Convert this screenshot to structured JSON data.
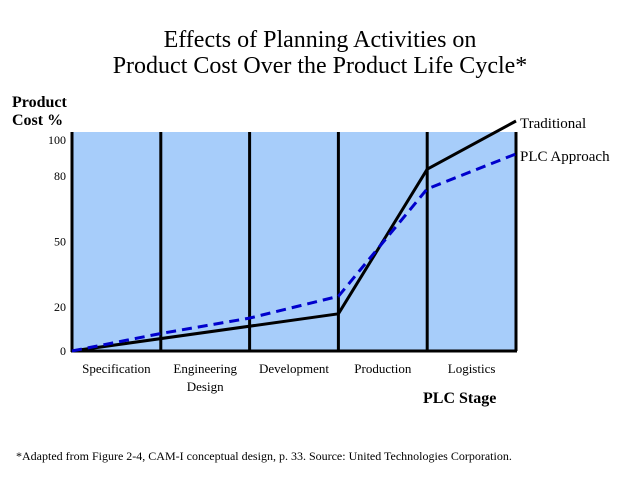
{
  "chart_data": {
    "type": "line",
    "title_lines": [
      "Effects of Planning Activities on",
      "Product Cost Over the Product Life Cycle*"
    ],
    "ylabel_lines": [
      "Product",
      "Cost %"
    ],
    "xlabel": "PLC Stage",
    "ylim": [
      0,
      100
    ],
    "yticks": [
      0,
      20,
      50,
      80,
      100
    ],
    "categories": [
      {
        "lines": [
          "Specification"
        ]
      },
      {
        "lines": [
          "Engineering",
          "Design"
        ]
      },
      {
        "lines": [
          "Development"
        ]
      },
      {
        "lines": [
          "Production"
        ]
      },
      {
        "lines": [
          "Logistics"
        ]
      }
    ],
    "x_range": [
      0,
      5
    ],
    "series": [
      {
        "name": "Traditional",
        "color": "#000000",
        "style": "solid",
        "x": [
          0,
          3,
          4,
          5
        ],
        "y": [
          0,
          17,
          83,
          105
        ]
      },
      {
        "name": "PLC Approach",
        "color": "#0000cc",
        "style": "dashed",
        "x": [
          0,
          1,
          2,
          3,
          4,
          5
        ],
        "y": [
          0,
          8,
          15,
          25,
          74,
          90
        ]
      }
    ],
    "plot_background": "#a7cdfa",
    "grid": false,
    "legend": "inline-right"
  },
  "footnote": "*Adapted from Figure 2-4, CAM-I conceptual design, p. 33.  Source: United Technologies Corporation."
}
